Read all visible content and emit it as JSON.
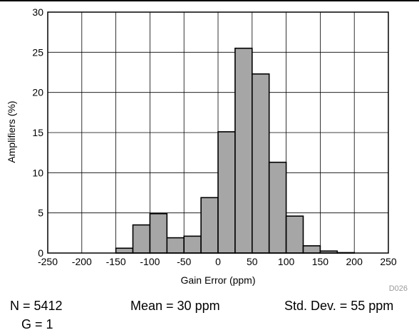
{
  "chart_data": {
    "type": "bar",
    "xlabel": "Gain Error (ppm)",
    "ylabel": "Amplifiers (%)",
    "xlim": [
      -250,
      250
    ],
    "ylim": [
      0,
      30
    ],
    "x_ticks": [
      -250,
      -200,
      -150,
      -100,
      -50,
      0,
      50,
      100,
      150,
      200,
      250
    ],
    "y_ticks": [
      0,
      5,
      10,
      15,
      20,
      25,
      30
    ],
    "grid": true,
    "bar_color": "#a6a6a6",
    "bins": [
      {
        "x0": -150,
        "x1": -125,
        "value": 0.6
      },
      {
        "x0": -125,
        "x1": -100,
        "value": 3.5
      },
      {
        "x0": -100,
        "x1": -75,
        "value": 4.9
      },
      {
        "x0": -75,
        "x1": -50,
        "value": 1.9
      },
      {
        "x0": -50,
        "x1": -25,
        "value": 2.1
      },
      {
        "x0": -25,
        "x1": 0,
        "value": 6.9
      },
      {
        "x0": 0,
        "x1": 25,
        "value": 15.1
      },
      {
        "x0": 25,
        "x1": 50,
        "value": 25.5
      },
      {
        "x0": 50,
        "x1": 75,
        "value": 22.3
      },
      {
        "x0": 75,
        "x1": 100,
        "value": 11.3
      },
      {
        "x0": 100,
        "x1": 125,
        "value": 4.6
      },
      {
        "x0": 125,
        "x1": 150,
        "value": 0.9
      },
      {
        "x0": 150,
        "x1": 175,
        "value": 0.25
      },
      {
        "x0": 175,
        "x1": 200,
        "value": 0.05
      }
    ]
  },
  "figure_id": "D026",
  "stats": {
    "n": "N = 5412",
    "mean": "Mean = 30 ppm",
    "std": "Std. Dev. = 55 ppm",
    "gain": "G = 1"
  }
}
